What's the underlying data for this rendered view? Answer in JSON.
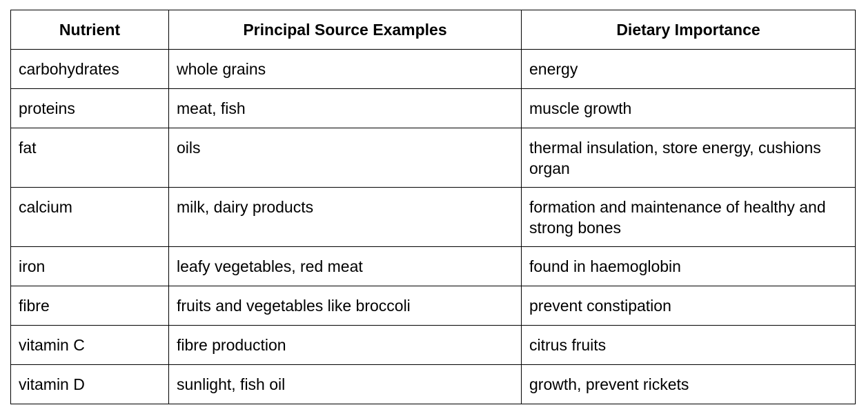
{
  "table": {
    "headers": [
      "Nutrient",
      "Principal Source Examples",
      "Dietary Importance"
    ],
    "rows": [
      [
        "carbohydrates",
        "whole grains",
        "energy"
      ],
      [
        "proteins",
        "meat, fish",
        "muscle growth"
      ],
      [
        "fat",
        "oils",
        "thermal insulation, store energy, cushions organ"
      ],
      [
        "calcium",
        "milk, dairy products",
        "formation and maintenance of healthy and strong bones"
      ],
      [
        "iron",
        "leafy vegetables, red meat",
        "found in haemoglobin"
      ],
      [
        "fibre",
        "fruits and vegetables like broccoli",
        "prevent constipation"
      ],
      [
        "vitamin C",
        "fibre production",
        "citrus fruits"
      ],
      [
        "vitamin D",
        "sunlight, fish oil",
        "growth, prevent rickets"
      ]
    ]
  }
}
